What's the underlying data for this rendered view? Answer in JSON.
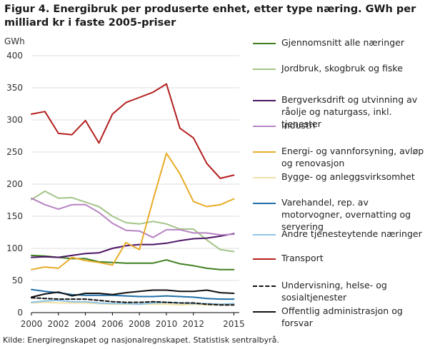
{
  "title": "Figur 4. Energibruk per produserte enhet, etter type næring. GWh per milliard kr i faste 2005-priser",
  "source": "Kilde: Energiregnskapet og nasjonalregnskapet. Statistisk sentralbyrå.",
  "chart_data": {
    "type": "line",
    "title": "Figur 4. Energibruk per produserte enhet, etter type næring. GWh per milliard kr i faste 2005-priser",
    "ylabel": "GWh",
    "xlabel": "",
    "x": [
      2000,
      2001,
      2002,
      2003,
      2004,
      2005,
      2006,
      2007,
      2008,
      2009,
      2010,
      2011,
      2012,
      2013,
      2014,
      2015
    ],
    "xlim": [
      2000,
      2015.4
    ],
    "ylim": [
      0,
      400
    ],
    "xticks": [
      2000,
      2002,
      2004,
      2006,
      2008,
      2010,
      2012,
      2015
    ],
    "yticks": [
      0,
      50,
      100,
      150,
      200,
      250,
      300,
      350,
      400
    ],
    "grid": "horizontal",
    "legend_position": "right",
    "series": [
      {
        "name": "Gjennomsnitt alle næringer",
        "color": "#3f7f1f",
        "dash": "solid",
        "values": [
          89,
          88,
          86,
          84,
          84,
          79,
          78,
          77,
          77,
          77,
          82,
          76,
          73,
          69,
          67,
          67
        ]
      },
      {
        "name": "Jordbruk, skogbruk og fiske",
        "color": "#a3c488",
        "dash": "solid",
        "values": [
          176,
          189,
          178,
          179,
          172,
          165,
          150,
          140,
          138,
          142,
          138,
          130,
          130,
          113,
          98,
          95
        ]
      },
      {
        "name": "Bergverksdrift og utvinning av råolje og naturgass, inkl. tjenester",
        "color": "#4b1366",
        "dash": "solid",
        "values": [
          86,
          87,
          86,
          89,
          92,
          93,
          100,
          104,
          106,
          106,
          108,
          112,
          115,
          116,
          119,
          123
        ]
      },
      {
        "name": "Industri",
        "color": "#b784c2",
        "dash": "solid",
        "values": [
          178,
          168,
          161,
          168,
          168,
          156,
          139,
          128,
          127,
          117,
          129,
          129,
          124,
          124,
          121,
          122
        ]
      },
      {
        "name": "Energi- og vannforsyning, avløp og renovasjon",
        "color": "#e8ac28",
        "dash": "solid",
        "values": [
          67,
          71,
          69,
          86,
          81,
          78,
          74,
          109,
          98,
          175,
          248,
          216,
          173,
          165,
          168,
          177
        ]
      },
      {
        "name": "Bygge- og anleggsvirksomhet",
        "color": "#f2e2a6",
        "dash": "solid",
        "values": [
          15,
          16,
          15,
          15,
          15,
          14,
          13,
          13,
          13,
          13,
          13,
          12,
          13,
          12,
          12,
          12
        ]
      },
      {
        "name": "Varehandel, rep. av motorvogner, overnatting og servering",
        "color": "#1f6fa8",
        "dash": "solid",
        "values": [
          36,
          33,
          31,
          28,
          27,
          27,
          27,
          26,
          25,
          25,
          26,
          25,
          24,
          22,
          21,
          21
        ]
      },
      {
        "name": "Andre tjenesteytende næringer",
        "color": "#8ec3e6",
        "dash": "solid",
        "values": [
          16,
          18,
          19,
          17,
          17,
          15,
          14,
          14,
          13,
          15,
          16,
          15,
          14,
          14,
          13,
          14
        ]
      },
      {
        "name": "Transport",
        "color": "#b41f1f",
        "dash": "solid",
        "values": [
          309,
          313,
          279,
          277,
          299,
          264,
          309,
          327,
          335,
          343,
          356,
          287,
          272,
          232,
          209,
          214
        ]
      },
      {
        "name": "Undervisning, helse- og sosialtjenester",
        "color": "#111111",
        "dash": "dashed",
        "values": [
          23,
          22,
          21,
          21,
          21,
          19,
          17,
          16,
          16,
          17,
          16,
          15,
          15,
          13,
          12,
          12
        ]
      },
      {
        "name": "Offentlig administrasjon og forsvar",
        "color": "#111111",
        "dash": "solid",
        "values": [
          24,
          29,
          32,
          26,
          30,
          30,
          28,
          31,
          33,
          35,
          35,
          33,
          33,
          35,
          31,
          30
        ]
      }
    ]
  }
}
